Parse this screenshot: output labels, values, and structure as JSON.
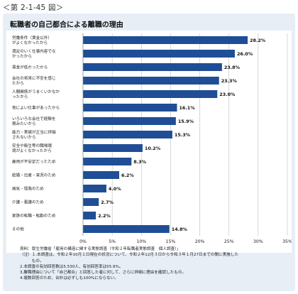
{
  "figure_label": "＜第 2-1-45 図＞",
  "chart_data": {
    "type": "bar",
    "orientation": "horizontal",
    "title": "転職者の自己都合による離職の理由",
    "categories": [
      [
        "労働条件（賃金以外）",
        "がよくなかったから"
      ],
      [
        "満足のいく仕事内容でな",
        "かったから"
      ],
      [
        "賃金が低かったから"
      ],
      [
        "会社の将来に不安を感じ",
        "たから"
      ],
      [
        "人間関係がうまくいかなか",
        "ったから"
      ],
      [
        "他によい仕事があったから"
      ],
      [
        "いろいろな会社で経験を",
        "積みたいから"
      ],
      [
        "能力・実績が正当に評価",
        "されないから"
      ],
      [
        "安全や衛生等の職場環",
        "境がよくなかったから"
      ],
      [
        "雇用が不安定だったため"
      ],
      [
        "結婚・出産・育児のため"
      ],
      [
        "病気・怪我のため"
      ],
      [
        "介護・看護のため"
      ],
      [
        "家族の転職・転勤のため"
      ],
      [
        "その他"
      ]
    ],
    "values": [
      28.2,
      26.0,
      23.8,
      23.3,
      23.0,
      16.1,
      15.9,
      15.3,
      10.2,
      8.3,
      6.2,
      4.0,
      2.7,
      2.2,
      14.8
    ],
    "value_labels": [
      "28.2%",
      "26.0%",
      "23.8%",
      "23.3%",
      "23.0%",
      "16.1%",
      "15.9%",
      "15.3%",
      "10.2%",
      "8.3%",
      "6.2%",
      "4.0%",
      "2.7%",
      "2.2%",
      "14.8%"
    ],
    "xlim": [
      0,
      35
    ],
    "xticks": [
      "0%",
      "5%",
      "10%",
      "15%",
      "20%",
      "25%",
      "30%",
      "35%"
    ],
    "grid": true,
    "bar_color": "#1f4e96"
  },
  "notes": [
    "資料：厚生労働省「雇用の構造に関する実態調査（令和２年転職者実態調査　個人調査）」",
    "（注）１.本調査は、令和２年10月１日現在の状況について、令和２年12月３日から令和３年１月27日までの間に実施した",
    "　　　もの。",
    "2.本調査の有効回答数は5,530人、有効回答率は55.9%。",
    "3.離職理由について「自己都合」と回答した者に対して、さらに詳細に理由を確認したもの。",
    "4.複数回答のため、合計は必ずしも100%にならない。"
  ]
}
